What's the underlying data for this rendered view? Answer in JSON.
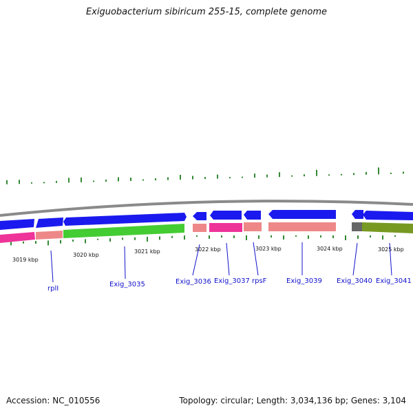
{
  "title": "Exiguobacterium sibiricum 255-15, complete genome",
  "footer": {
    "accession": "Accession: NC_010556",
    "summary": "Topology: circular; Length: 3,034,136 bp; Genes: 3,104"
  },
  "scale": {
    "ticks": [
      {
        "label": "3019 kbp"
      },
      {
        "label": "3020 kbp"
      },
      {
        "label": "3021 kbp"
      },
      {
        "label": "3022 kbp"
      },
      {
        "label": "3023 kbp"
      },
      {
        "label": "3024 kbp"
      },
      {
        "label": "3025 kbp"
      }
    ]
  },
  "genes": [
    {
      "name": "rplI"
    },
    {
      "name": "Exig_3035"
    },
    {
      "name": "Exig_3036"
    },
    {
      "name": "Exig_3037"
    },
    {
      "name": "rpsF"
    },
    {
      "name": "Exig_3039"
    },
    {
      "name": "Exig_3040"
    },
    {
      "name": "Exig_3041"
    }
  ],
  "colors": {
    "backbone": "#8a8a8a",
    "forward_arrows": "#1a1aee",
    "green_segment": "#44cc33",
    "pink_segment": "#ee3399",
    "salmon_segment": "#ee8888",
    "olive_segment": "#779922",
    "gray_segment": "#666666",
    "gc_ticks": "#338833",
    "label_text": "#1010cc"
  }
}
